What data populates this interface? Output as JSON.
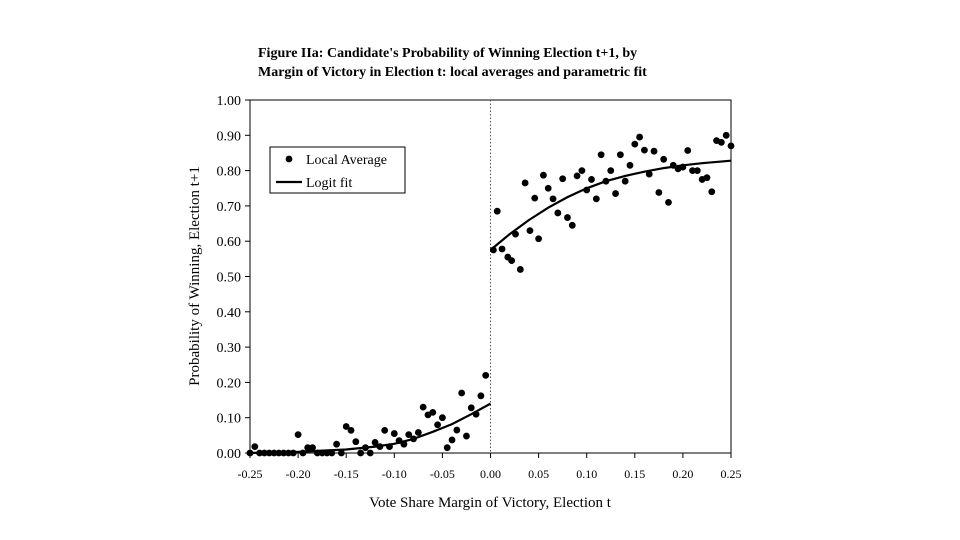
{
  "chart_data": {
    "type": "scatter",
    "title": "Figure IIa: Candidate's Probability of Winning Election t+1, by",
    "subtitle": "Margin of Victory in Election t: local averages and parametric fit",
    "xlabel": "Vote Share Margin of Victory, Election t",
    "ylabel": "Probability of Winning, Election t+1",
    "xlim": [
      -0.25,
      0.25
    ],
    "ylim": [
      0,
      1
    ],
    "x_ticks": [
      "-0.25",
      "-0.20",
      "-0.15",
      "-0.10",
      "-0.05",
      "0.00",
      "0.05",
      "0.10",
      "0.15",
      "0.20",
      "0.25"
    ],
    "y_ticks": [
      "0.00",
      "0.10",
      "0.20",
      "0.30",
      "0.40",
      "0.50",
      "0.60",
      "0.70",
      "0.80",
      "0.90",
      "1.00"
    ],
    "grid": false,
    "legend_position": "top-left",
    "threshold_x": 0,
    "series": [
      {
        "name": "Local Average",
        "kind": "scatter",
        "points": [
          [
            -0.25,
            0.0
          ],
          [
            -0.245,
            0.018
          ],
          [
            -0.24,
            0.0
          ],
          [
            -0.235,
            0.0
          ],
          [
            -0.23,
            0.0
          ],
          [
            -0.225,
            0.0
          ],
          [
            -0.22,
            0.0
          ],
          [
            -0.215,
            0.0
          ],
          [
            -0.21,
            0.0
          ],
          [
            -0.205,
            0.0
          ],
          [
            -0.2,
            0.052
          ],
          [
            -0.195,
            0.0
          ],
          [
            -0.19,
            0.015
          ],
          [
            -0.185,
            0.015
          ],
          [
            -0.18,
            0.0
          ],
          [
            -0.175,
            0.0
          ],
          [
            -0.17,
            0.0
          ],
          [
            -0.165,
            0.0
          ],
          [
            -0.16,
            0.025
          ],
          [
            -0.155,
            0.0
          ],
          [
            -0.15,
            0.075
          ],
          [
            -0.145,
            0.064
          ],
          [
            -0.14,
            0.032
          ],
          [
            -0.135,
            0.0
          ],
          [
            -0.13,
            0.015
          ],
          [
            -0.125,
            0.0
          ],
          [
            -0.12,
            0.03
          ],
          [
            -0.115,
            0.018
          ],
          [
            -0.11,
            0.064
          ],
          [
            -0.105,
            0.018
          ],
          [
            -0.1,
            0.055
          ],
          [
            -0.095,
            0.035
          ],
          [
            -0.09,
            0.025
          ],
          [
            -0.085,
            0.052
          ],
          [
            -0.08,
            0.04
          ],
          [
            -0.075,
            0.058
          ],
          [
            -0.07,
            0.13
          ],
          [
            -0.065,
            0.108
          ],
          [
            -0.06,
            0.115
          ],
          [
            -0.055,
            0.08
          ],
          [
            -0.05,
            0.1
          ],
          [
            -0.045,
            0.015
          ],
          [
            -0.04,
            0.037
          ],
          [
            -0.035,
            0.065
          ],
          [
            -0.03,
            0.17
          ],
          [
            -0.025,
            0.048
          ],
          [
            -0.02,
            0.128
          ],
          [
            -0.015,
            0.11
          ],
          [
            -0.01,
            0.162
          ],
          [
            -0.005,
            0.22
          ],
          [
            0.003,
            0.575
          ],
          [
            0.007,
            0.685
          ],
          [
            0.012,
            0.578
          ],
          [
            0.018,
            0.555
          ],
          [
            0.022,
            0.545
          ],
          [
            0.026,
            0.62
          ],
          [
            0.031,
            0.52
          ],
          [
            0.036,
            0.765
          ],
          [
            0.041,
            0.63
          ],
          [
            0.046,
            0.722
          ],
          [
            0.05,
            0.607
          ],
          [
            0.055,
            0.787
          ],
          [
            0.06,
            0.75
          ],
          [
            0.065,
            0.72
          ],
          [
            0.07,
            0.68
          ],
          [
            0.075,
            0.777
          ],
          [
            0.08,
            0.667
          ],
          [
            0.085,
            0.645
          ],
          [
            0.09,
            0.785
          ],
          [
            0.095,
            0.8
          ],
          [
            0.1,
            0.745
          ],
          [
            0.105,
            0.775
          ],
          [
            0.11,
            0.72
          ],
          [
            0.115,
            0.845
          ],
          [
            0.12,
            0.77
          ],
          [
            0.125,
            0.8
          ],
          [
            0.13,
            0.735
          ],
          [
            0.135,
            0.845
          ],
          [
            0.14,
            0.77
          ],
          [
            0.145,
            0.815
          ],
          [
            0.15,
            0.875
          ],
          [
            0.155,
            0.895
          ],
          [
            0.16,
            0.858
          ],
          [
            0.165,
            0.79
          ],
          [
            0.17,
            0.855
          ],
          [
            0.175,
            0.738
          ],
          [
            0.18,
            0.832
          ],
          [
            0.185,
            0.71
          ],
          [
            0.19,
            0.815
          ],
          [
            0.195,
            0.805
          ],
          [
            0.2,
            0.81
          ],
          [
            0.205,
            0.857
          ],
          [
            0.21,
            0.8
          ],
          [
            0.215,
            0.8
          ],
          [
            0.22,
            0.775
          ],
          [
            0.225,
            0.78
          ],
          [
            0.23,
            0.74
          ],
          [
            0.235,
            0.885
          ],
          [
            0.24,
            0.88
          ],
          [
            0.245,
            0.9
          ],
          [
            0.25,
            0.87
          ]
        ]
      },
      {
        "name": "Logit fit",
        "kind": "line",
        "segments": [
          [
            [
              -0.25,
              0.0
            ],
            [
              -0.2,
              0.003
            ],
            [
              -0.15,
              0.01
            ],
            [
              -0.12,
              0.018
            ],
            [
              -0.1,
              0.026
            ],
            [
              -0.08,
              0.04
            ],
            [
              -0.06,
              0.06
            ],
            [
              -0.04,
              0.082
            ],
            [
              -0.02,
              0.11
            ],
            [
              0.0,
              0.14
            ]
          ],
          [
            [
              0.0,
              0.575
            ],
            [
              0.02,
              0.62
            ],
            [
              0.04,
              0.66
            ],
            [
              0.06,
              0.695
            ],
            [
              0.08,
              0.725
            ],
            [
              0.1,
              0.75
            ],
            [
              0.12,
              0.77
            ],
            [
              0.14,
              0.785
            ],
            [
              0.16,
              0.797
            ],
            [
              0.18,
              0.807
            ],
            [
              0.2,
              0.815
            ],
            [
              0.22,
              0.821
            ],
            [
              0.25,
              0.828
            ]
          ]
        ]
      }
    ]
  }
}
